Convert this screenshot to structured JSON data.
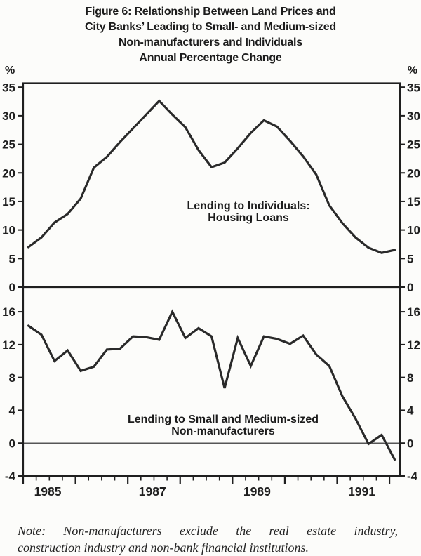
{
  "figure": {
    "title_lines": [
      "Figure 6: Relationship Between Land Prices and",
      "City Banks’ Leading to Small- and Medium-sized",
      "Non-manufacturers and Individuals",
      "Annual Percentage Change"
    ],
    "unit_left": "%",
    "unit_right": "%",
    "note_lines": [
      "Note: Non-manufacturers exclude the real estate industry,",
      "construction industry and non-bank financial institutions."
    ]
  },
  "colors": {
    "ink": "#1f1f1f",
    "line": "#2a2a2a",
    "paper": "#fcfcfa"
  },
  "chart_data": [
    {
      "type": "line",
      "panel": "top",
      "ylim": [
        0,
        35.7
      ],
      "yticks": [
        0,
        5,
        10,
        15,
        20,
        25,
        30,
        35
      ],
      "xlim": [
        1985,
        1992.2
      ],
      "grid": false,
      "annotation": {
        "lines": [
          "Lending to Individuals:",
          "Housing Loans"
        ]
      },
      "series": [
        {
          "name": "Lending to Individuals: Housing Loans",
          "x": [
            1985.1,
            1985.35,
            1985.6,
            1985.85,
            1986.1,
            1986.35,
            1986.6,
            1986.85,
            1987.1,
            1987.35,
            1987.6,
            1987.85,
            1988.1,
            1988.35,
            1988.6,
            1988.85,
            1989.1,
            1989.35,
            1989.6,
            1989.85,
            1990.1,
            1990.35,
            1990.6,
            1990.85,
            1991.1,
            1991.35,
            1991.6,
            1991.85,
            1992.1
          ],
          "values": [
            7.0,
            8.7,
            11.3,
            12.8,
            15.5,
            20.9,
            22.8,
            25.4,
            27.8,
            30.2,
            32.6,
            30.2,
            28.0,
            24.0,
            21.0,
            21.8,
            24.3,
            27.0,
            29.2,
            28.1,
            25.6,
            22.9,
            19.7,
            14.3,
            11.2,
            8.7,
            6.9,
            6.0,
            6.5
          ]
        }
      ]
    },
    {
      "type": "line",
      "panel": "bottom",
      "ylim": [
        -4,
        19.0
      ],
      "yticks": [
        -4,
        0,
        4,
        8,
        12,
        16
      ],
      "zero_line": true,
      "xlim": [
        1985,
        1992.2
      ],
      "grid": false,
      "annotation": {
        "lines": [
          "Lending to Small and Medium-sized",
          "Non-manufacturers"
        ]
      },
      "xaxis": {
        "major_ticks": [
          1985,
          1986,
          1987,
          1988,
          1989,
          1990,
          1991,
          1992
        ],
        "minor_step": 0.25,
        "labels": [
          {
            "text": "1985",
            "x": 1985.47
          },
          {
            "text": "1987",
            "x": 1987.47
          },
          {
            "text": "1989",
            "x": 1989.47
          },
          {
            "text": "1991",
            "x": 1991.47
          }
        ]
      },
      "series": [
        {
          "name": "Lending to Small and Medium-sized Non-manufacturers",
          "x": [
            1985.1,
            1985.35,
            1985.6,
            1985.85,
            1986.1,
            1986.35,
            1986.6,
            1986.85,
            1987.1,
            1987.35,
            1987.6,
            1987.85,
            1988.1,
            1988.35,
            1988.6,
            1988.85,
            1989.1,
            1989.35,
            1989.6,
            1989.85,
            1990.1,
            1990.35,
            1990.6,
            1990.85,
            1991.1,
            1991.35,
            1991.6,
            1991.85,
            1992.1
          ],
          "values": [
            14.3,
            13.2,
            10.0,
            11.3,
            8.8,
            9.3,
            11.4,
            11.5,
            13.0,
            12.9,
            12.6,
            16.0,
            12.8,
            14.0,
            13.0,
            6.7,
            12.8,
            9.4,
            13.0,
            12.7,
            12.1,
            13.1,
            10.8,
            9.4,
            5.7,
            3.0,
            -0.1,
            1.0,
            -2.0
          ]
        }
      ]
    }
  ]
}
